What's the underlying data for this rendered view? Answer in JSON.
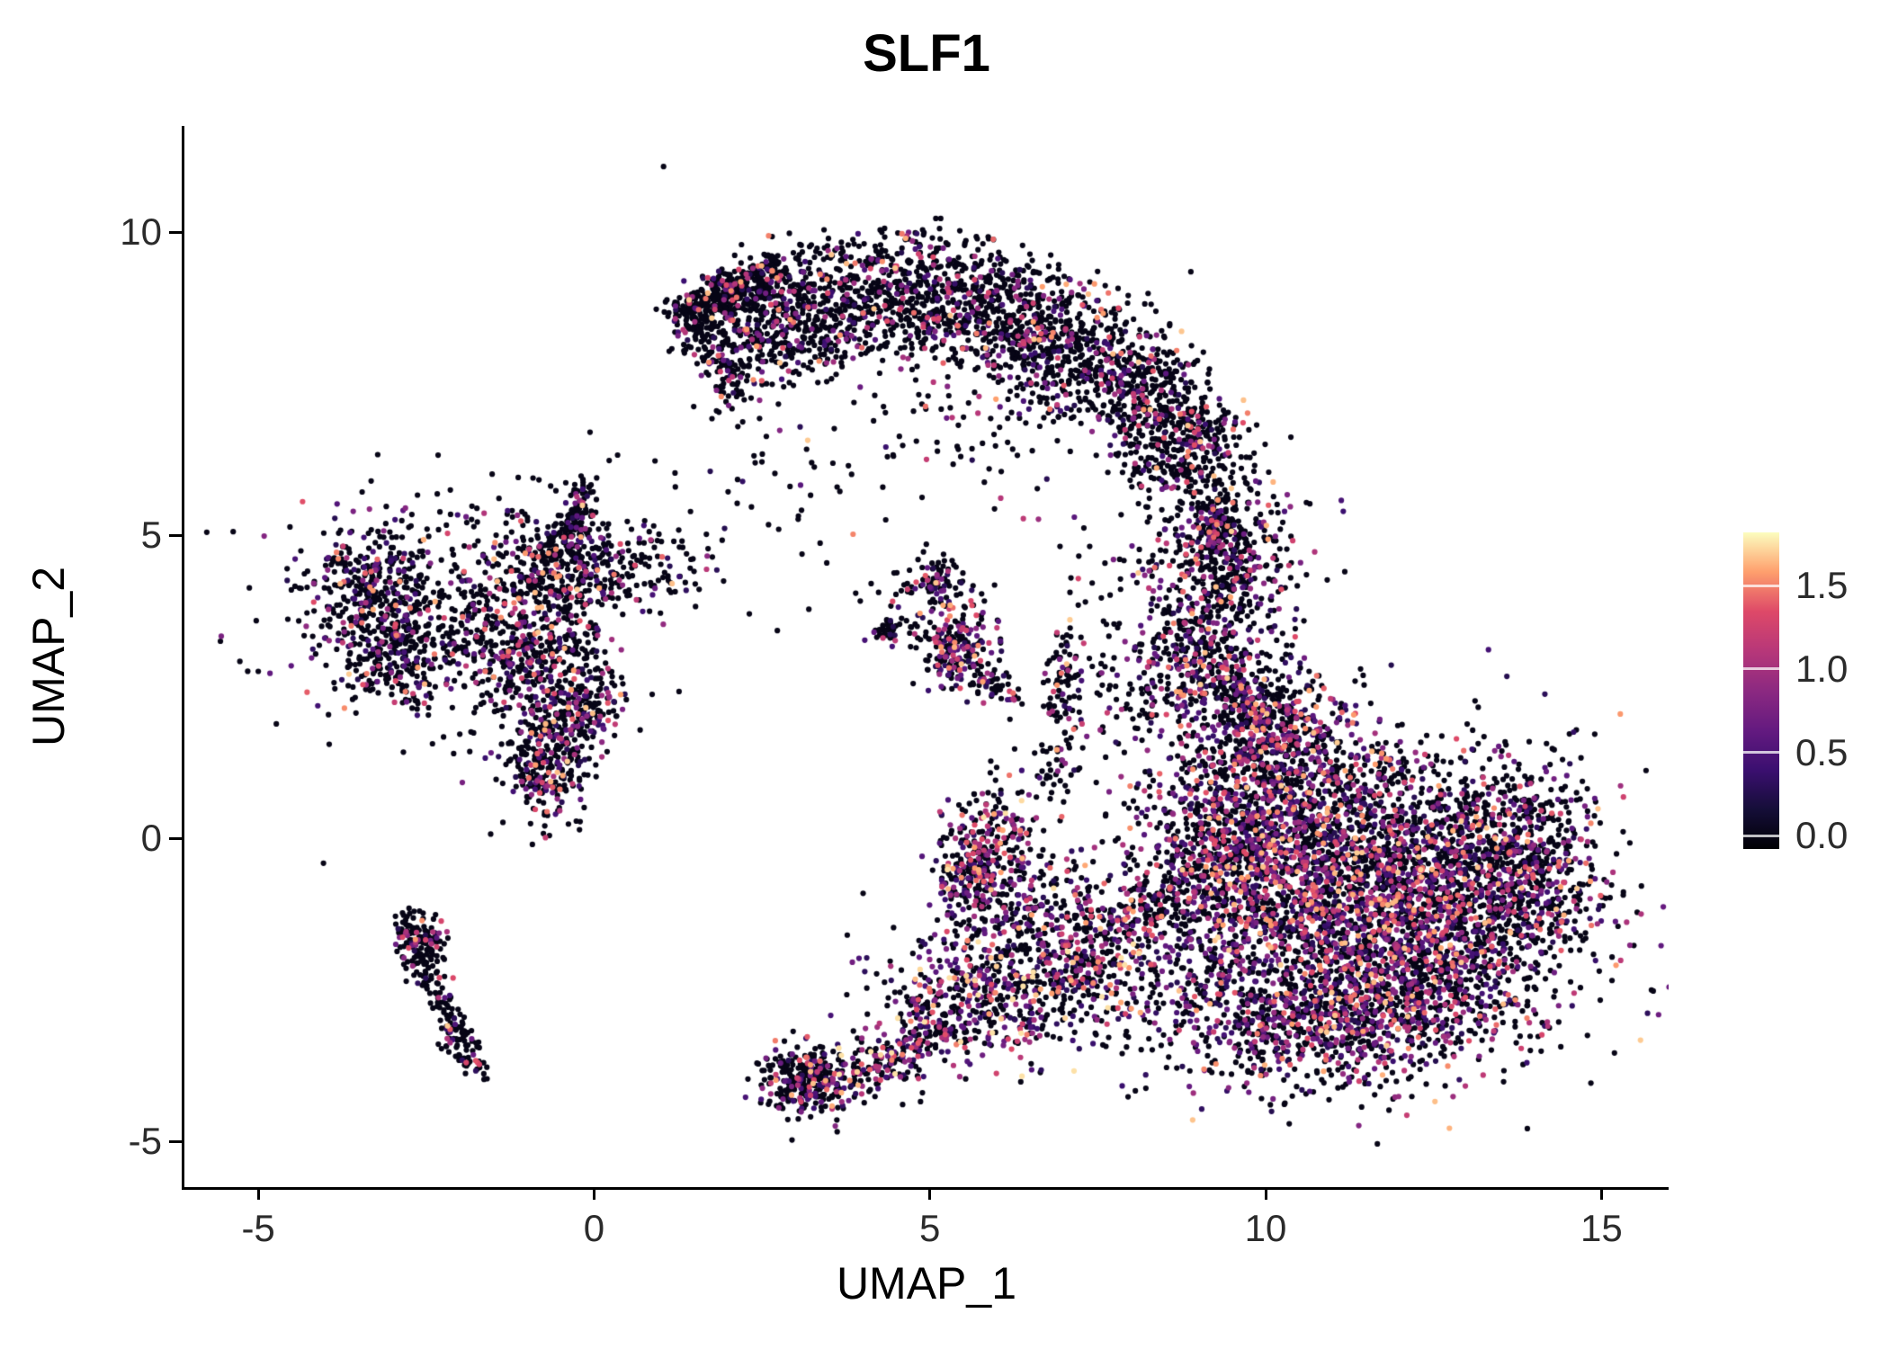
{
  "chart_data": {
    "type": "scatter",
    "title": "SLF1",
    "xlabel": "UMAP_1",
    "ylabel": "UMAP_2",
    "xlim": [
      -6.1,
      16.0
    ],
    "ylim": [
      -5.75,
      11.75
    ],
    "x_ticks": [
      {
        "value": -5,
        "label": "-5"
      },
      {
        "value": 0,
        "label": "0"
      },
      {
        "value": 5,
        "label": "5"
      },
      {
        "value": 10,
        "label": "10"
      },
      {
        "value": 15,
        "label": "15"
      }
    ],
    "y_ticks": [
      {
        "value": -5,
        "label": "-5"
      },
      {
        "value": 0,
        "label": "0"
      },
      {
        "value": 5,
        "label": "5"
      },
      {
        "value": 10,
        "label": "10"
      }
    ],
    "grid": false,
    "legend_position": "right",
    "colormap": "magma",
    "point_radius": 3.1,
    "seed": 42,
    "clusters": [
      {
        "name": "crescent-arc",
        "type": "arc",
        "cx": 4.6,
        "cy": 2.9,
        "xscale": 0.85,
        "r0": 4.9,
        "r1": 7.3,
        "a0": 30,
        "a1": 126,
        "n": 2600,
        "colored_frac": 0.22
      },
      {
        "name": "crescent-left-tip",
        "type": "strand",
        "x0": 1.35,
        "y0": 8.65,
        "x1": 2.7,
        "y1": 9.35,
        "jitter": 0.18,
        "n": 360,
        "colored_frac": 0.15
      },
      {
        "name": "crescent-inner-sparse",
        "type": "blob",
        "cx": 6.0,
        "cy": 7.2,
        "sx": 1.2,
        "sy": 0.8,
        "n": 150,
        "colored_frac": 0.2
      },
      {
        "name": "crescent-right-tail",
        "type": "strand",
        "x0": 9.2,
        "y0": 5.6,
        "x1": 9.55,
        "y1": 4.1,
        "jitter": 0.25,
        "n": 200,
        "colored_frac": 0.3
      },
      {
        "name": "upper-noise",
        "type": "blob",
        "cx": 2.9,
        "cy": 6.3,
        "sx": 1.4,
        "sy": 1.2,
        "n": 70,
        "colored_frac": 0.15
      },
      {
        "name": "connector-main",
        "type": "blob",
        "cx": 9.4,
        "cy": 4.6,
        "sx": 0.55,
        "sy": 0.85,
        "n": 380,
        "colored_frac": 0.35
      },
      {
        "name": "connector-lower",
        "type": "blob",
        "cx": 9.0,
        "cy": 2.9,
        "sx": 0.5,
        "sy": 0.6,
        "n": 280,
        "colored_frac": 0.35
      },
      {
        "name": "connector-halo",
        "type": "blob",
        "cx": 8.7,
        "cy": 3.8,
        "sx": 1.0,
        "sy": 1.0,
        "n": 150,
        "colored_frac": 0.3
      },
      {
        "name": "connector-bridge",
        "type": "blob",
        "cx": 9.9,
        "cy": 2.2,
        "sx": 0.5,
        "sy": 0.5,
        "n": 220,
        "colored_frac": 0.4
      },
      {
        "name": "main-blob-core",
        "type": "blob",
        "cx": 11.4,
        "cy": -1.4,
        "sx": 1.55,
        "sy": 1.15,
        "n": 2400,
        "colored_frac": 0.45
      },
      {
        "name": "main-blob-upper-left",
        "type": "blob",
        "cx": 10.2,
        "cy": 0.4,
        "sx": 1.0,
        "sy": 0.85,
        "n": 1100,
        "colored_frac": 0.45
      },
      {
        "name": "main-blob-right",
        "type": "blob",
        "cx": 12.9,
        "cy": -0.4,
        "sx": 0.95,
        "sy": 0.95,
        "n": 900,
        "colored_frac": 0.4
      },
      {
        "name": "main-blob-right-edge",
        "type": "blob",
        "cx": 13.9,
        "cy": -0.4,
        "sx": 0.5,
        "sy": 0.75,
        "n": 300,
        "colored_frac": 0.35
      },
      {
        "name": "main-blob-bottom",
        "type": "blob",
        "cx": 10.6,
        "cy": -3.1,
        "sx": 1.1,
        "sy": 0.55,
        "n": 500,
        "colored_frac": 0.4
      },
      {
        "name": "main-blob-left-edge",
        "type": "blob",
        "cx": 9.4,
        "cy": -0.6,
        "sx": 0.6,
        "sy": 0.9,
        "n": 400,
        "colored_frac": 0.45
      },
      {
        "name": "main-blob-top",
        "type": "blob",
        "cx": 10.1,
        "cy": 1.7,
        "sx": 0.6,
        "sy": 0.45,
        "n": 280,
        "colored_frac": 0.4
      },
      {
        "name": "main-blob-bottom-right",
        "type": "blob",
        "cx": 12.2,
        "cy": -2.6,
        "sx": 0.9,
        "sy": 0.5,
        "n": 350,
        "colored_frac": 0.35
      },
      {
        "name": "left-cluster-dense",
        "type": "blob",
        "cx": -3.4,
        "cy": 4.1,
        "sx": 0.5,
        "sy": 0.5,
        "n": 300,
        "colored_frac": 0.3
      },
      {
        "name": "left-cluster-lower",
        "type": "blob",
        "cx": -3.0,
        "cy": 2.95,
        "sx": 0.35,
        "sy": 0.4,
        "n": 200,
        "colored_frac": 0.25
      },
      {
        "name": "left-cluster-field",
        "type": "blob",
        "cx": -1.9,
        "cy": 3.6,
        "sx": 0.9,
        "sy": 0.8,
        "n": 380,
        "colored_frac": 0.25
      },
      {
        "name": "left-cluster-mid",
        "type": "blob",
        "cx": -0.75,
        "cy": 3.0,
        "sx": 0.5,
        "sy": 0.5,
        "n": 300,
        "colored_frac": 0.35
      },
      {
        "name": "left-cluster-upper",
        "type": "blob",
        "cx": -0.55,
        "cy": 4.45,
        "sx": 0.45,
        "sy": 0.4,
        "n": 300,
        "colored_frac": 0.3
      },
      {
        "name": "left-cluster-spike",
        "type": "strand",
        "x0": -0.35,
        "y0": 4.9,
        "x1": -0.15,
        "y1": 5.85,
        "jitter": 0.12,
        "n": 100,
        "colored_frac": 0.2
      },
      {
        "name": "left-cluster-foot",
        "type": "blob",
        "cx": -0.7,
        "cy": 1.25,
        "sx": 0.3,
        "sy": 0.45,
        "n": 280,
        "colored_frac": 0.35
      },
      {
        "name": "left-cluster-foot2",
        "type": "blob",
        "cx": -0.2,
        "cy": 2.1,
        "sx": 0.35,
        "sy": 0.35,
        "n": 160,
        "colored_frac": 0.3
      },
      {
        "name": "left-cluster-arm",
        "type": "blob",
        "cx": 0.6,
        "cy": 4.5,
        "sx": 0.6,
        "sy": 0.35,
        "n": 150,
        "colored_frac": 0.25
      },
      {
        "name": "left-cluster-halo",
        "type": "blob",
        "cx": -2.3,
        "cy": 3.8,
        "sx": 1.6,
        "sy": 1.3,
        "n": 200,
        "colored_frac": 0.2
      },
      {
        "name": "center-small-main",
        "type": "blob",
        "cx": 5.45,
        "cy": 3.1,
        "sx": 0.28,
        "sy": 0.38,
        "n": 170,
        "colored_frac": 0.5
      },
      {
        "name": "center-small-upper",
        "type": "blob",
        "cx": 5.1,
        "cy": 4.15,
        "sx": 0.3,
        "sy": 0.25,
        "n": 90,
        "colored_frac": 0.3
      },
      {
        "name": "center-small-dot",
        "type": "blob",
        "cx": 4.45,
        "cy": 3.45,
        "sx": 0.15,
        "sy": 0.15,
        "n": 35,
        "colored_frac": 0.3
      },
      {
        "name": "center-small-tail",
        "type": "strand",
        "x0": 5.8,
        "y0": 2.75,
        "x1": 6.2,
        "y1": 2.3,
        "jitter": 0.1,
        "n": 45,
        "colored_frac": 0.3
      },
      {
        "name": "center-small-halo",
        "type": "blob",
        "cx": 4.9,
        "cy": 3.6,
        "sx": 0.5,
        "sy": 0.5,
        "n": 60,
        "colored_frac": 0.3
      },
      {
        "name": "bottom-left-strand",
        "type": "strand",
        "x0": -2.85,
        "y0": -1.3,
        "x1": -1.8,
        "y1": -3.85,
        "jitter": 0.13,
        "n": 230,
        "colored_frac": 0.18
      },
      {
        "name": "bottom-left-knot",
        "type": "blob",
        "cx": -2.55,
        "cy": -1.6,
        "sx": 0.2,
        "sy": 0.2,
        "n": 60,
        "colored_frac": 0.2
      },
      {
        "name": "bottom-tip",
        "type": "blob",
        "cx": 3.05,
        "cy": -4.0,
        "sx": 0.3,
        "sy": 0.28,
        "n": 240,
        "colored_frac": 0.3
      },
      {
        "name": "bottom-strand",
        "type": "strand",
        "x0": 3.3,
        "y0": -4.15,
        "x1": 5.3,
        "y1": -3.1,
        "jitter": 0.3,
        "n": 320,
        "colored_frac": 0.45,
        "intensity": 1.15
      },
      {
        "name": "bottom-spread",
        "type": "blob",
        "cx": 5.9,
        "cy": -2.5,
        "sx": 0.85,
        "sy": 0.55,
        "n": 420,
        "colored_frac": 0.5,
        "intensity": 1.15
      },
      {
        "name": "bottom-merge",
        "type": "blob",
        "cx": 7.2,
        "cy": -2.1,
        "sx": 0.75,
        "sy": 0.65,
        "n": 380,
        "colored_frac": 0.4,
        "intensity": 1.1
      },
      {
        "name": "bottom-upper-sparse",
        "type": "blob",
        "cx": 6.4,
        "cy": -1.1,
        "sx": 0.6,
        "sy": 0.45,
        "n": 170,
        "colored_frac": 0.4
      },
      {
        "name": "bottom-bridge",
        "type": "strand",
        "x0": 7.8,
        "y0": -1.6,
        "x1": 8.8,
        "y1": -0.8,
        "jitter": 0.3,
        "n": 150,
        "colored_frac": 0.4
      },
      {
        "name": "mid-clump",
        "type": "blob",
        "cx": 5.95,
        "cy": -0.05,
        "sx": 0.4,
        "sy": 0.55,
        "n": 240,
        "colored_frac": 0.45,
        "intensity": 1.1
      },
      {
        "name": "mid-clump-knot",
        "type": "blob",
        "cx": 5.6,
        "cy": -0.6,
        "sx": 0.25,
        "sy": 0.25,
        "n": 100,
        "colored_frac": 0.4
      },
      {
        "name": "mid-strand",
        "type": "strand",
        "x0": 6.85,
        "y0": 0.9,
        "x1": 7.05,
        "y1": 3.3,
        "jitter": 0.15,
        "n": 120,
        "colored_frac": 0.2
      },
      {
        "name": "mid-strand-halo",
        "type": "blob",
        "cx": 7.7,
        "cy": 2.3,
        "sx": 0.5,
        "sy": 0.4,
        "n": 50,
        "colored_frac": 0.25
      }
    ]
  },
  "colorbar": {
    "vmin": -0.08,
    "vmax": 1.82,
    "ticks": [
      {
        "value": 0.0,
        "label": "0.0"
      },
      {
        "value": 0.5,
        "label": "0.5"
      },
      {
        "value": 1.0,
        "label": "1.0"
      },
      {
        "value": 1.5,
        "label": "1.5"
      }
    ],
    "colors": [
      "#000004",
      "#150e38",
      "#3b0f70",
      "#641a80",
      "#8c2981",
      "#b73779",
      "#de4968",
      "#fe9f6d",
      "#fcfdbf"
    ]
  }
}
